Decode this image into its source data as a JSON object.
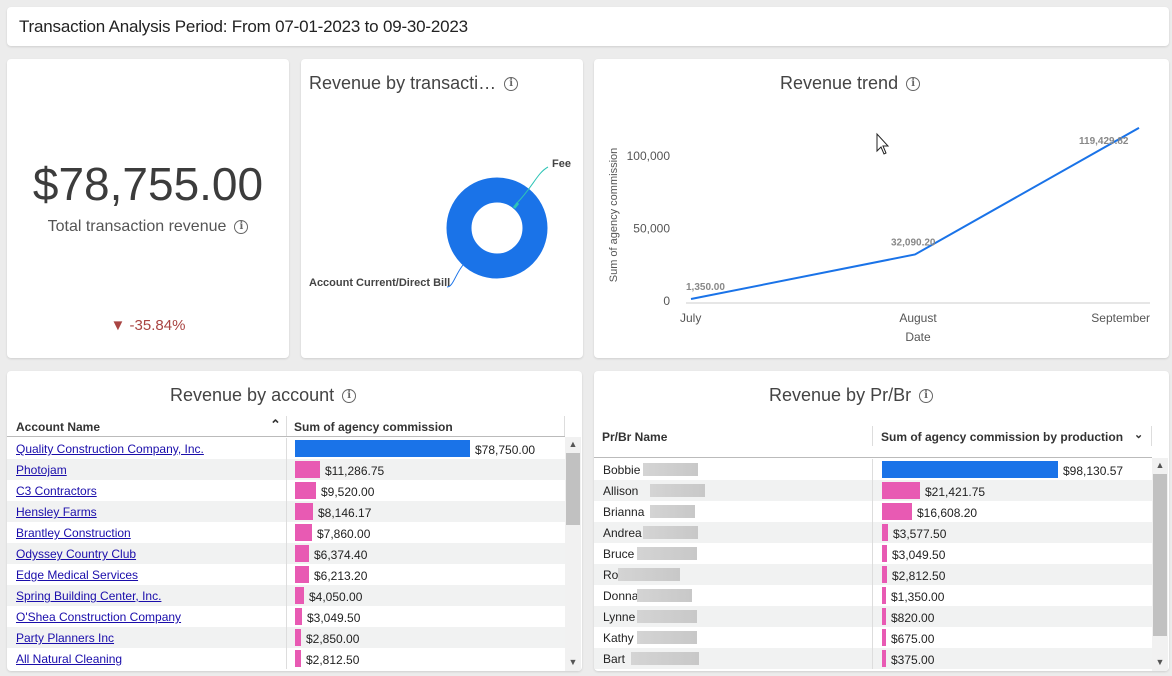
{
  "header": {
    "title": "Transaction Analysis Period: From 07-01-2023 to 09-30-2023"
  },
  "kpi": {
    "value": "$78,755.00",
    "label": "Total transaction revenue",
    "change": "▼ -35.84%"
  },
  "donut": {
    "title": "Revenue by transacti…",
    "labels": {
      "fee": "Fee",
      "account": "Account Current/Direct Bill"
    }
  },
  "trend": {
    "title": "Revenue trend"
  },
  "chart_data": {
    "type": "line",
    "title": "Revenue trend",
    "xlabel": "Date",
    "ylabel": "Sum of agency commission",
    "categories": [
      "July",
      "August",
      "September"
    ],
    "values": [
      1350,
      32090.2,
      119429.82
    ],
    "data_labels": [
      "1,350.00",
      "32,090.20",
      "119,429.82"
    ],
    "yticks": [
      "0",
      "50,000",
      "100,000"
    ],
    "ylim": [
      0,
      120000
    ]
  },
  "account": {
    "title": "Revenue by account",
    "col1": "Account Name",
    "col2": "Sum of agency commission",
    "rows": [
      {
        "name": "Quality Construction Company, Inc.",
        "value": "$78,750.00",
        "amount": 78750,
        "color": "#1a73e8"
      },
      {
        "name": "Photojam",
        "value": "$11,286.75",
        "amount": 11286.75,
        "color": "#e85ab3"
      },
      {
        "name": "C3 Contractors",
        "value": "$9,520.00",
        "amount": 9520,
        "color": "#e85ab3"
      },
      {
        "name": "Hensley Farms",
        "value": "$8,146.17",
        "amount": 8146.17,
        "color": "#e85ab3"
      },
      {
        "name": "Brantley Construction",
        "value": "$7,860.00",
        "amount": 7860,
        "color": "#e85ab3"
      },
      {
        "name": "Odyssey Country Club",
        "value": "$6,374.40",
        "amount": 6374.4,
        "color": "#e85ab3"
      },
      {
        "name": "Edge Medical Services",
        "value": "$6,213.20",
        "amount": 6213.2,
        "color": "#e85ab3"
      },
      {
        "name": "Spring Building Center, Inc.",
        "value": "$4,050.00",
        "amount": 4050,
        "color": "#e85ab3"
      },
      {
        "name": "O'Shea Construction Company",
        "value": "$3,049.50",
        "amount": 3049.5,
        "color": "#e85ab3"
      },
      {
        "name": "Party Planners Inc",
        "value": "$2,850.00",
        "amount": 2850,
        "color": "#e85ab3"
      },
      {
        "name": "All Natural Cleaning",
        "value": "$2,812.50",
        "amount": 2812.5,
        "color": "#e85ab3"
      }
    ]
  },
  "prbr": {
    "title": "Revenue by Pr/Br",
    "col1": "Pr/Br Name",
    "col2": "Sum of agency commission by production cre",
    "rows": [
      {
        "name": "Bobbie",
        "value": "$98,130.57",
        "amount": 98130.57,
        "color": "#1a73e8"
      },
      {
        "name": "Allison",
        "value": "$21,421.75",
        "amount": 21421.75,
        "color": "#e85ab3"
      },
      {
        "name": "Brianna",
        "value": "$16,608.20",
        "amount": 16608.2,
        "color": "#e85ab3"
      },
      {
        "name": "Andrea",
        "value": "$3,577.50",
        "amount": 3577.5,
        "color": "#e85ab3"
      },
      {
        "name": "Bruce",
        "value": "$3,049.50",
        "amount": 3049.5,
        "color": "#e85ab3"
      },
      {
        "name": "Ro",
        "value": "$2,812.50",
        "amount": 2812.5,
        "color": "#e85ab3"
      },
      {
        "name": "Donna",
        "value": "$1,350.00",
        "amount": 1350,
        "color": "#e85ab3"
      },
      {
        "name": "Lynne",
        "value": "$820.00",
        "amount": 820,
        "color": "#e85ab3"
      },
      {
        "name": "Kathy",
        "value": "$675.00",
        "amount": 675,
        "color": "#e85ab3"
      },
      {
        "name": "Bart",
        "value": "$375.00",
        "amount": 375,
        "color": "#e85ab3"
      }
    ]
  }
}
